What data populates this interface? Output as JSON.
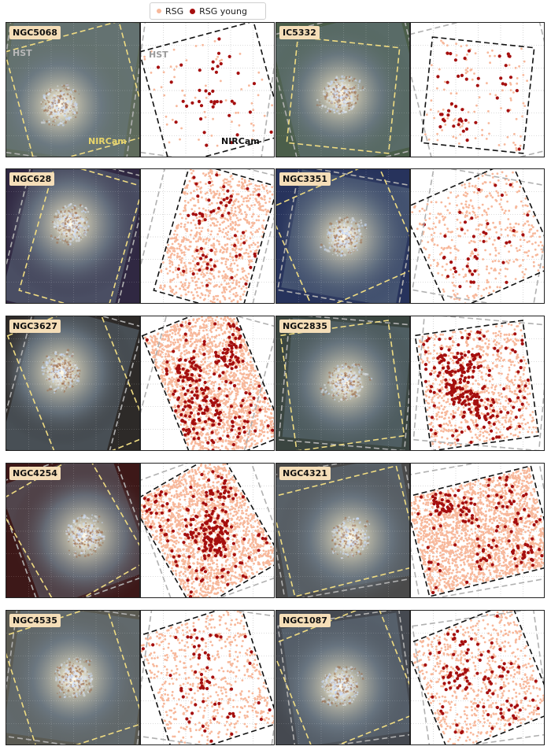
{
  "legend": {
    "rsg_label": "RSG",
    "rsg_young_label": "RSG young"
  },
  "colors": {
    "rsg": "#f7b89b",
    "rsg_young": "#a50f0f",
    "hst_outline": "#b0b0b0",
    "nircam_outline": "#111111",
    "nircam_on_image": "#f0dc82"
  },
  "overlay_labels": {
    "hst": "HST",
    "nircam": "NIRCam"
  },
  "chart_data": [
    {
      "type": "scatter",
      "galaxy": "NGC5068",
      "series": [
        {
          "name": "RSG",
          "density": "low"
        },
        {
          "name": "RSG young",
          "density": "low"
        }
      ],
      "grid": true
    },
    {
      "type": "scatter",
      "galaxy": "IC5332",
      "series": [
        {
          "name": "RSG",
          "density": "low"
        },
        {
          "name": "RSG young",
          "density": "low"
        }
      ],
      "grid": true
    },
    {
      "type": "scatter",
      "galaxy": "NGC628",
      "series": [
        {
          "name": "RSG",
          "density": "high"
        },
        {
          "name": "RSG young",
          "density": "low"
        }
      ],
      "grid": true
    },
    {
      "type": "scatter",
      "galaxy": "NGC3351",
      "series": [
        {
          "name": "RSG",
          "density": "medium"
        },
        {
          "name": "RSG young",
          "density": "low"
        }
      ],
      "grid": true
    },
    {
      "type": "scatter",
      "galaxy": "NGC3627",
      "series": [
        {
          "name": "RSG",
          "density": "very high"
        },
        {
          "name": "RSG young",
          "density": "high"
        }
      ],
      "grid": true
    },
    {
      "type": "scatter",
      "galaxy": "NGC2835",
      "series": [
        {
          "name": "RSG",
          "density": "high"
        },
        {
          "name": "RSG young",
          "density": "medium"
        }
      ],
      "grid": true
    },
    {
      "type": "scatter",
      "galaxy": "NGC4254",
      "series": [
        {
          "name": "RSG",
          "density": "very high"
        },
        {
          "name": "RSG young",
          "density": "high"
        }
      ],
      "grid": true
    },
    {
      "type": "scatter",
      "galaxy": "NGC4321",
      "series": [
        {
          "name": "RSG",
          "density": "very high"
        },
        {
          "name": "RSG young",
          "density": "medium"
        }
      ],
      "grid": true
    },
    {
      "type": "scatter",
      "galaxy": "NGC4535",
      "series": [
        {
          "name": "RSG",
          "density": "medium"
        },
        {
          "name": "RSG young",
          "density": "low"
        }
      ],
      "grid": true
    },
    {
      "type": "scatter",
      "galaxy": "NGC1087",
      "series": [
        {
          "name": "RSG",
          "density": "high"
        },
        {
          "name": "RSG young",
          "density": "medium"
        }
      ],
      "grid": true
    }
  ]
}
